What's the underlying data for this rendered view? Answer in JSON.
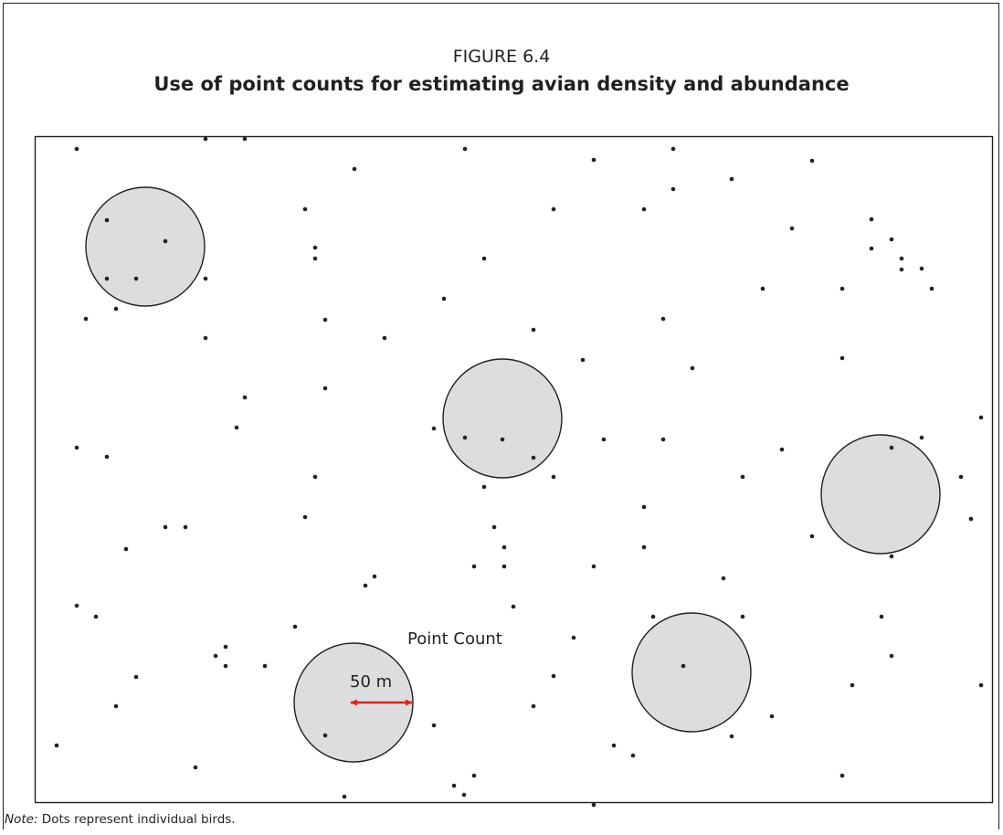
{
  "figure": {
    "label": "FIGURE 6.4",
    "title": "Use of point counts for estimating avian density and abundance"
  },
  "diagram": {
    "point_count_label": "Point Count",
    "radius_label": "50 m",
    "circle_fill": "#dcdddf",
    "arrow_color": "#e1251b",
    "dot_color": "#231f20"
  },
  "note": {
    "prefix": "Note:",
    "text": " Dots represent individual birds."
  }
}
